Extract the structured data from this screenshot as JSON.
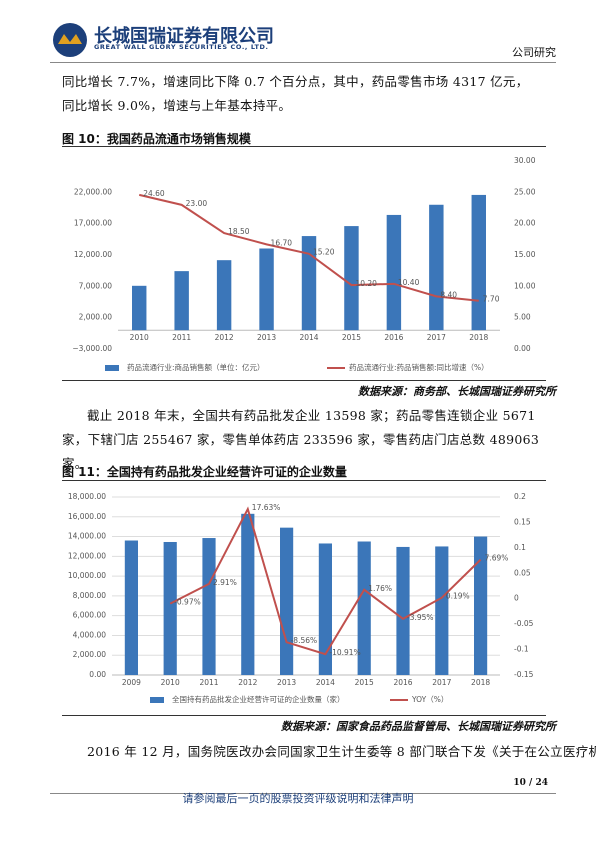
{
  "header": {
    "company": "长城国瑞证券有限公司",
    "company_en": "GREAT WALL GLORY SECURITIES CO., LTD.",
    "section": "公司研究"
  },
  "paragraphs": [
    "同比增长 7.7%，增速同比下降 0.7 个百分点，其中，药品零售市场 4317 亿元，同比增长 9.0%，增速与上年基本持平。",
    "截止 2018 年末，全国共有药品批发企业 13598 家；药品零售连锁企业 5671 家，下辖门店 255467 家，零售单体药店 233596 家，零售药店门店总数 489063 家。",
    "2016 年 12 月，国务院医改办会同国家卫生计生委等 8 部门联合下发《关于在公立医疗机"
  ],
  "figures": [
    {
      "title": "图 10：我国药品流通市场销售规模",
      "source": "数据来源：商务部、长城国瑞证券研究所"
    },
    {
      "title": "图 11：全国持有药品批发企业经营许可证的企业数量",
      "source": "数据来源：国家食品药品监督管局、长城国瑞证券研究所"
    }
  ],
  "footer": {
    "page": "10 / 24",
    "notice": "请参阅最后一页的股票投资评级说明和法律声明"
  },
  "chart_data": [
    {
      "type": "combo",
      "grid": false,
      "categories": [
        "2010",
        "2011",
        "2012",
        "2013",
        "2014",
        "2015",
        "2016",
        "2017",
        "2018"
      ],
      "series": [
        {
          "name": "药品流通行业:商品销售额（单位：亿元）",
          "type": "bar",
          "color": "#3b76b9",
          "values": [
            7084,
            9426,
            11174,
            13036,
            15021,
            16613,
            18393,
            20016,
            21586
          ]
        },
        {
          "name": "药品流通行业:药品销售额:同比增速（%）",
          "type": "line",
          "axis": "y2",
          "color": "#c0504d",
          "values": [
            24.6,
            23.0,
            18.5,
            16.7,
            15.2,
            10.2,
            10.4,
            8.4,
            7.7
          ],
          "value_labels": [
            "24.60",
            "23.00",
            "18.50",
            "16.70",
            "15.20",
            "10.20",
            "10.40",
            "8.40",
            "7.70"
          ]
        }
      ],
      "ylim": [
        -3000,
        27000
      ],
      "yticks": [
        {
          "value": -3000,
          "label": "−3,000.00"
        },
        {
          "value": 2000,
          "label": "2,000.00"
        },
        {
          "value": 7000,
          "label": "7,000.00"
        },
        {
          "value": 12000,
          "label": "12,000.00"
        },
        {
          "value": 17000,
          "label": "17,000.00"
        },
        {
          "value": 22000,
          "label": "22,000.00"
        }
      ],
      "y2lim": [
        0,
        30
      ],
      "y2ticks": [
        {
          "value": 0,
          "label": "0.00"
        },
        {
          "value": 5,
          "label": "5.00"
        },
        {
          "value": 10,
          "label": "10.00"
        },
        {
          "value": 15,
          "label": "15.00"
        },
        {
          "value": 20,
          "label": "20.00"
        },
        {
          "value": 25,
          "label": "25.00"
        },
        {
          "value": 30,
          "label": "30.00"
        }
      ]
    },
    {
      "type": "combo",
      "grid": true,
      "categories": [
        "2009",
        "2010",
        "2011",
        "2012",
        "2013",
        "2014",
        "2015",
        "2016",
        "2017",
        "2018"
      ],
      "series": [
        {
          "name": "全国持有药品批发企业经营许可证的企业数量（家）",
          "type": "bar",
          "color": "#3b76b9",
          "values": [
            13600,
            13450,
            13850,
            16300,
            14900,
            13300,
            13500,
            12950,
            13000,
            14000
          ]
        },
        {
          "name": "YOY（%）",
          "type": "line",
          "axis": "y2",
          "color": "#c0504d",
          "values": [
            null,
            -0.0097,
            0.0291,
            0.1763,
            -0.0856,
            -0.1091,
            0.0176,
            -0.0395,
            0.0019,
            0.0769
          ],
          "value_labels": [
            null,
            "-0.97%",
            "2.91%",
            "17.63%",
            "-8.56%",
            "-10.91%",
            "1.76%",
            "-3.95%",
            "0.19%",
            "7.69%"
          ]
        }
      ],
      "ylim": [
        0,
        18000
      ],
      "yticks": [
        {
          "value": 0,
          "label": "0.00"
        },
        {
          "value": 2000,
          "label": "2,000.00"
        },
        {
          "value": 4000,
          "label": "4,000.00"
        },
        {
          "value": 6000,
          "label": "6,000.00"
        },
        {
          "value": 8000,
          "label": "8,000.00"
        },
        {
          "value": 10000,
          "label": "10,000.00"
        },
        {
          "value": 12000,
          "label": "12,000.00"
        },
        {
          "value": 14000,
          "label": "14,000.00"
        },
        {
          "value": 16000,
          "label": "16,000.00"
        },
        {
          "value": 18000,
          "label": "18,000.00"
        }
      ],
      "y2lim": [
        -0.15,
        0.2
      ],
      "y2ticks": [
        -0.15,
        -0.1,
        -0.05,
        0,
        0.05,
        0.1,
        0.15,
        0.2
      ]
    }
  ]
}
